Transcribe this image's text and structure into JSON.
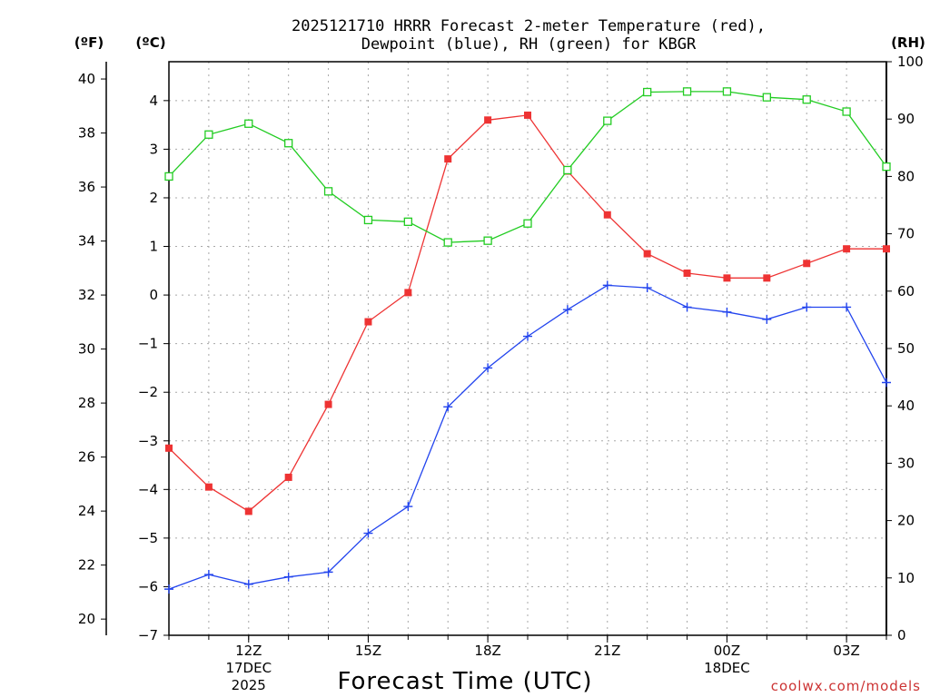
{
  "chart_data": {
    "type": "line",
    "title_line1": "2025121710 HRRR Forecast 2-meter Temperature (red),",
    "title_line2": "Dewpoint (blue), RH (green) for KBGR",
    "xlabel": "Forecast Time (UTC)",
    "credit": "coolwx.com/models",
    "unit_f": "(ºF)",
    "unit_c": "(ºC)",
    "unit_rh": "(RH)",
    "x_hours": [
      10,
      11,
      12,
      13,
      14,
      15,
      16,
      17,
      18,
      19,
      20,
      21,
      22,
      23,
      24,
      25,
      26,
      27,
      28
    ],
    "x_range": [
      10,
      28
    ],
    "x_ticks": [
      {
        "hour": 12,
        "label": "12Z",
        "sub1": "17DEC",
        "sub2": "2025"
      },
      {
        "hour": 15,
        "label": "15Z",
        "sub1": "",
        "sub2": ""
      },
      {
        "hour": 18,
        "label": "18Z",
        "sub1": "",
        "sub2": ""
      },
      {
        "hour": 21,
        "label": "21Z",
        "sub1": "",
        "sub2": ""
      },
      {
        "hour": 24,
        "label": "00Z",
        "sub1": "18DEC",
        "sub2": ""
      },
      {
        "hour": 27,
        "label": "03Z",
        "sub1": "",
        "sub2": ""
      }
    ],
    "celsius_range": [
      -7,
      4.8
    ],
    "celsius_ticks": [
      "4",
      "3",
      "2",
      "1",
      "0",
      "−1",
      "−2",
      "−3",
      "−4",
      "−5",
      "−6",
      "−7"
    ],
    "fahrenheit_ticks": [
      "40",
      "38",
      "36",
      "34",
      "32",
      "30",
      "28",
      "26",
      "24",
      "22",
      "20"
    ],
    "rh_range": [
      0,
      100
    ],
    "rh_ticks": [
      "100",
      "90",
      "80",
      "70",
      "60",
      "50",
      "40",
      "30",
      "20",
      "10",
      "0"
    ],
    "series": [
      {
        "name": "Temperature",
        "unit": "C",
        "color": "#ee3333",
        "marker": "filled-square",
        "values": [
          -3.15,
          -3.95,
          -4.45,
          -3.75,
          -2.25,
          -0.55,
          0.05,
          2.8,
          3.6,
          3.7,
          2.55,
          1.65,
          0.85,
          0.45,
          0.35,
          0.35,
          0.65,
          0.95,
          0.95
        ]
      },
      {
        "name": "Dewpoint",
        "unit": "C",
        "color": "#2244ee",
        "marker": "plus",
        "values": [
          -6.05,
          -5.75,
          -5.95,
          -5.8,
          -5.7,
          -4.9,
          -4.35,
          -2.3,
          -1.5,
          -0.85,
          -0.3,
          0.2,
          0.15,
          -0.25,
          -0.35,
          -0.5,
          -0.25,
          -0.25,
          -1.8
        ]
      },
      {
        "name": "RH",
        "unit": "%",
        "color": "#22cc22",
        "marker": "open-square",
        "values": [
          80,
          87.3,
          89.2,
          85.8,
          77.4,
          72.4,
          72.1,
          68.5,
          68.8,
          71.8,
          81.1,
          89.7,
          94.7,
          94.8,
          94.8,
          93.8,
          93.4,
          91.3,
          81.7
        ]
      }
    ]
  }
}
